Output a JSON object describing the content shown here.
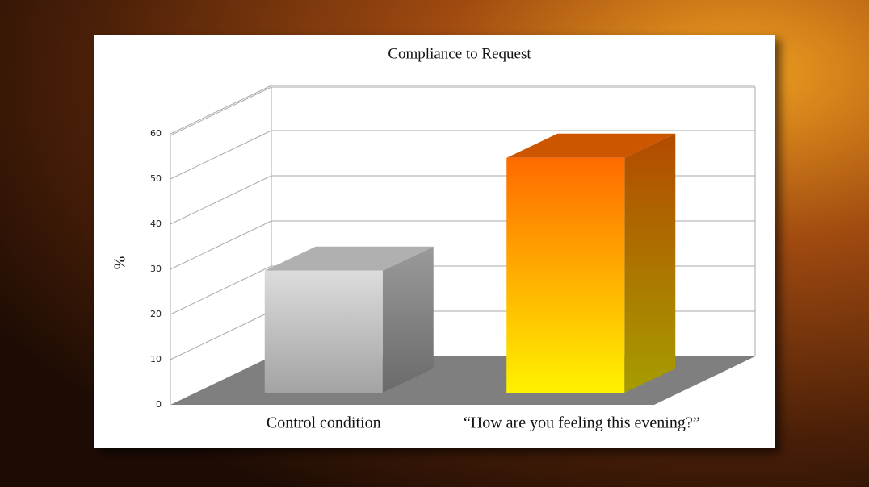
{
  "chart_data": {
    "type": "bar3d",
    "title": "Compliance to Request",
    "y_label": "%",
    "categories": [
      "Control condition",
      "“How are you feeling this evening?”"
    ],
    "values": [
      27,
      52
    ],
    "colors": [
      [
        "#dcdcdc",
        "#a3a3a3"
      ],
      [
        "#ff6a00",
        "#fff200"
      ]
    ],
    "ylim": [
      0,
      60
    ],
    "yticks": [
      0,
      10,
      20,
      30,
      40,
      50,
      60
    ],
    "grid": true
  }
}
